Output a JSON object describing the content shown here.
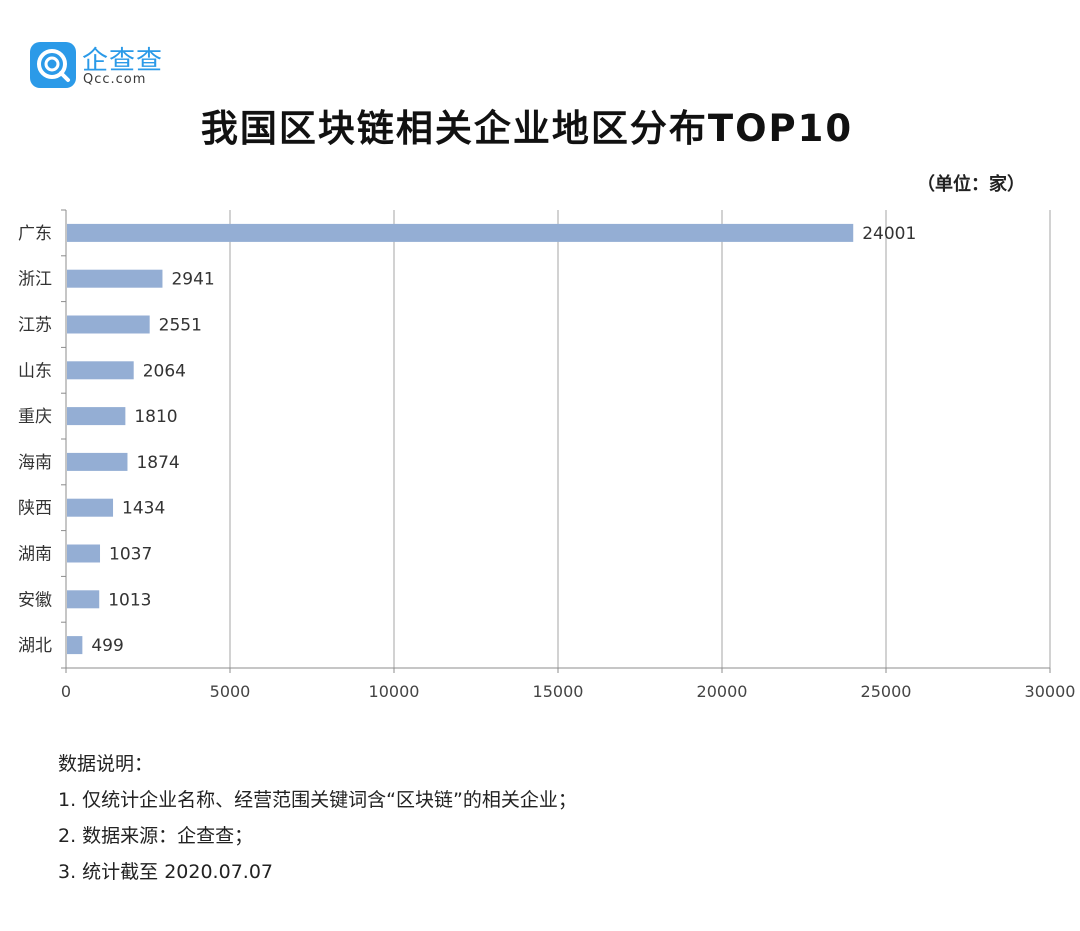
{
  "brand": {
    "name": "企查查",
    "sub": "Qcc.com"
  },
  "unit_note": "（单位：家）",
  "notes": {
    "heading": "数据说明：",
    "items": [
      "1. 仅统计企业名称、经营范围关键词含“区块链”的相关企业；",
      "2. 数据来源：企查查；",
      "3. 统计截至 2020.07.07"
    ]
  },
  "colors": {
    "bar": "#94aed4",
    "grid": "#a6a6a6",
    "brand": "#2b9ae8"
  },
  "chart_data": {
    "type": "bar",
    "orientation": "horizontal",
    "title": "我国区块链相关企业地区分布TOP10",
    "categories": [
      "广东",
      "浙江",
      "江苏",
      "山东",
      "重庆",
      "海南",
      "陕西",
      "湖南",
      "安徽",
      "湖北"
    ],
    "values": [
      24001,
      2941,
      2551,
      2064,
      1810,
      1874,
      1434,
      1037,
      1013,
      499
    ],
    "xlim": [
      0,
      30000
    ],
    "xticks": [
      0,
      5000,
      10000,
      15000,
      20000,
      25000,
      30000
    ],
    "grid": true,
    "data_labels": true
  }
}
